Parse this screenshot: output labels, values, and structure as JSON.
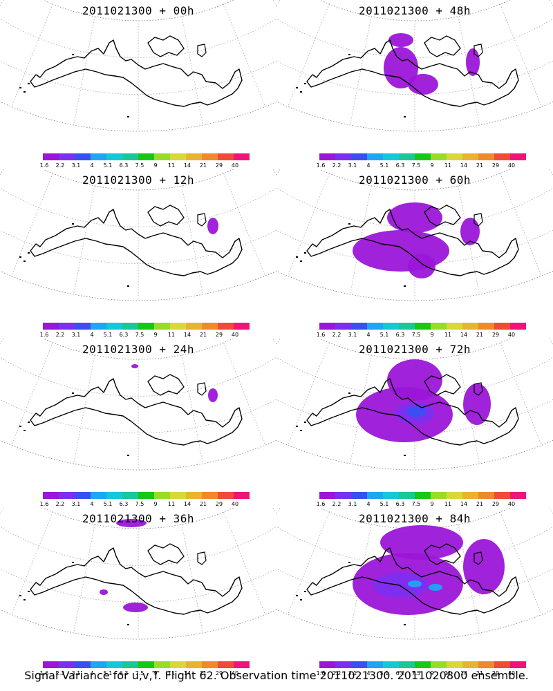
{
  "panels": [
    {
      "title": "2011021300 + 00h",
      "col": 0,
      "row": 0,
      "level": 0
    },
    {
      "title": "2011021300 + 12h",
      "col": 0,
      "row": 1,
      "level": 1
    },
    {
      "title": "2011021300 + 24h",
      "col": 0,
      "row": 2,
      "level": 1
    },
    {
      "title": "2011021300 + 36h",
      "col": 0,
      "row": 3,
      "level": 2
    },
    {
      "title": "2011021300 + 48h",
      "col": 1,
      "row": 0,
      "level": 3
    },
    {
      "title": "2011021300 + 60h",
      "col": 1,
      "row": 1,
      "level": 4
    },
    {
      "title": "2011021300 + 72h",
      "col": 1,
      "row": 2,
      "level": 5
    },
    {
      "title": "2011021300 + 84h",
      "col": 1,
      "row": 3,
      "level": 6
    }
  ],
  "colorbar": {
    "colors": [
      "#9b16d8",
      "#7d2ff0",
      "#3a4ff0",
      "#1ea6f5",
      "#14c8d8",
      "#19c896",
      "#16c814",
      "#98dc28",
      "#d8d83a",
      "#e8b430",
      "#f0892a",
      "#f04a38",
      "#f01478"
    ],
    "labels": [
      "1.6",
      "2.2",
      "3.1",
      "4",
      "5.1",
      "6.3",
      "7.5",
      "9",
      "11",
      "14",
      "21",
      "29",
      "40"
    ]
  },
  "caption": "Signal Variance for u,v,T. Flight 62. Observation time 2011021300. 2011020800 ensemble."
}
